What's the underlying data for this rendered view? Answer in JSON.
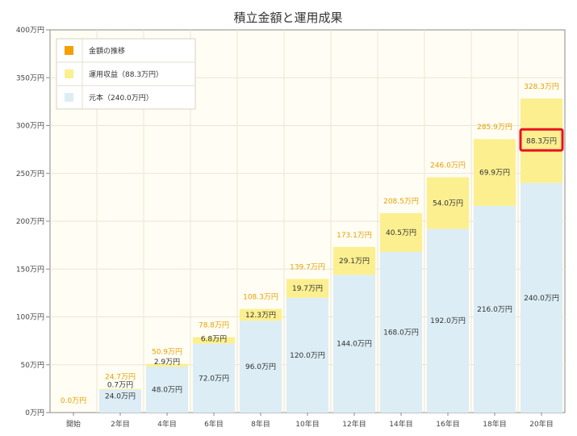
{
  "chart_data": {
    "type": "bar",
    "stacked": true,
    "title": "積立金額と運用成果",
    "categories": [
      "開始",
      "2年目",
      "4年目",
      "6年目",
      "8年目",
      "10年目",
      "12年目",
      "14年目",
      "16年目",
      "18年目",
      "20年目"
    ],
    "y_ticks": [
      "0万円",
      "50万円",
      "100万円",
      "150万円",
      "200万円",
      "250万円",
      "300万円",
      "350万円",
      "400万円"
    ],
    "ylim": [
      0,
      400
    ],
    "grid": true,
    "legend_position": "top-left",
    "legend": [
      {
        "label": "金額の推移",
        "color": "#f5a000"
      },
      {
        "label": "運用収益（88.3万円）",
        "color": "#fcef90"
      },
      {
        "label": "元本（240.0万円）",
        "color": "#dcedf5"
      }
    ],
    "series": [
      {
        "name": "元本（240.0万円）",
        "values": [
          0,
          24.0,
          48.0,
          72.0,
          96.0,
          120.0,
          144.0,
          168.0,
          192.0,
          216.0,
          240.0
        ],
        "labels": [
          "",
          "24.0万円",
          "48.0万円",
          "72.0万円",
          "96.0万円",
          "120.0万円",
          "144.0万円",
          "168.0万円",
          "192.0万円",
          "216.0万円",
          "240.0万円"
        ],
        "color": "#dcedf5"
      },
      {
        "name": "運用収益（88.3万円）",
        "values": [
          0,
          0.7,
          2.9,
          6.8,
          12.3,
          19.7,
          29.1,
          40.5,
          54.0,
          69.9,
          88.3
        ],
        "labels": [
          "",
          "0.7万円",
          "2.9万円",
          "6.8万円",
          "12.3万円",
          "19.7万円",
          "29.1万円",
          "40.5万円",
          "54.0万円",
          "69.9万円",
          "88.3万円"
        ],
        "color": "#fcef90"
      }
    ],
    "totals": [
      0.0,
      24.7,
      50.9,
      78.8,
      108.3,
      139.7,
      173.1,
      208.5,
      246.0,
      285.9,
      328.3
    ],
    "total_labels": [
      "0.0万円",
      "24.7万円",
      "50.9万円",
      "78.8万円",
      "108.3万円",
      "139.7万円",
      "173.1万円",
      "208.5万円",
      "246.0万円",
      "285.9万円",
      "328.3万円"
    ],
    "highlight": {
      "label": "88.3万円",
      "color": "#e8141e"
    },
    "colors": {
      "plot_background": "#fffdf4",
      "grid": "#ece5d5",
      "axis": "#8a8a8a",
      "total_label": "#e8a000"
    }
  }
}
